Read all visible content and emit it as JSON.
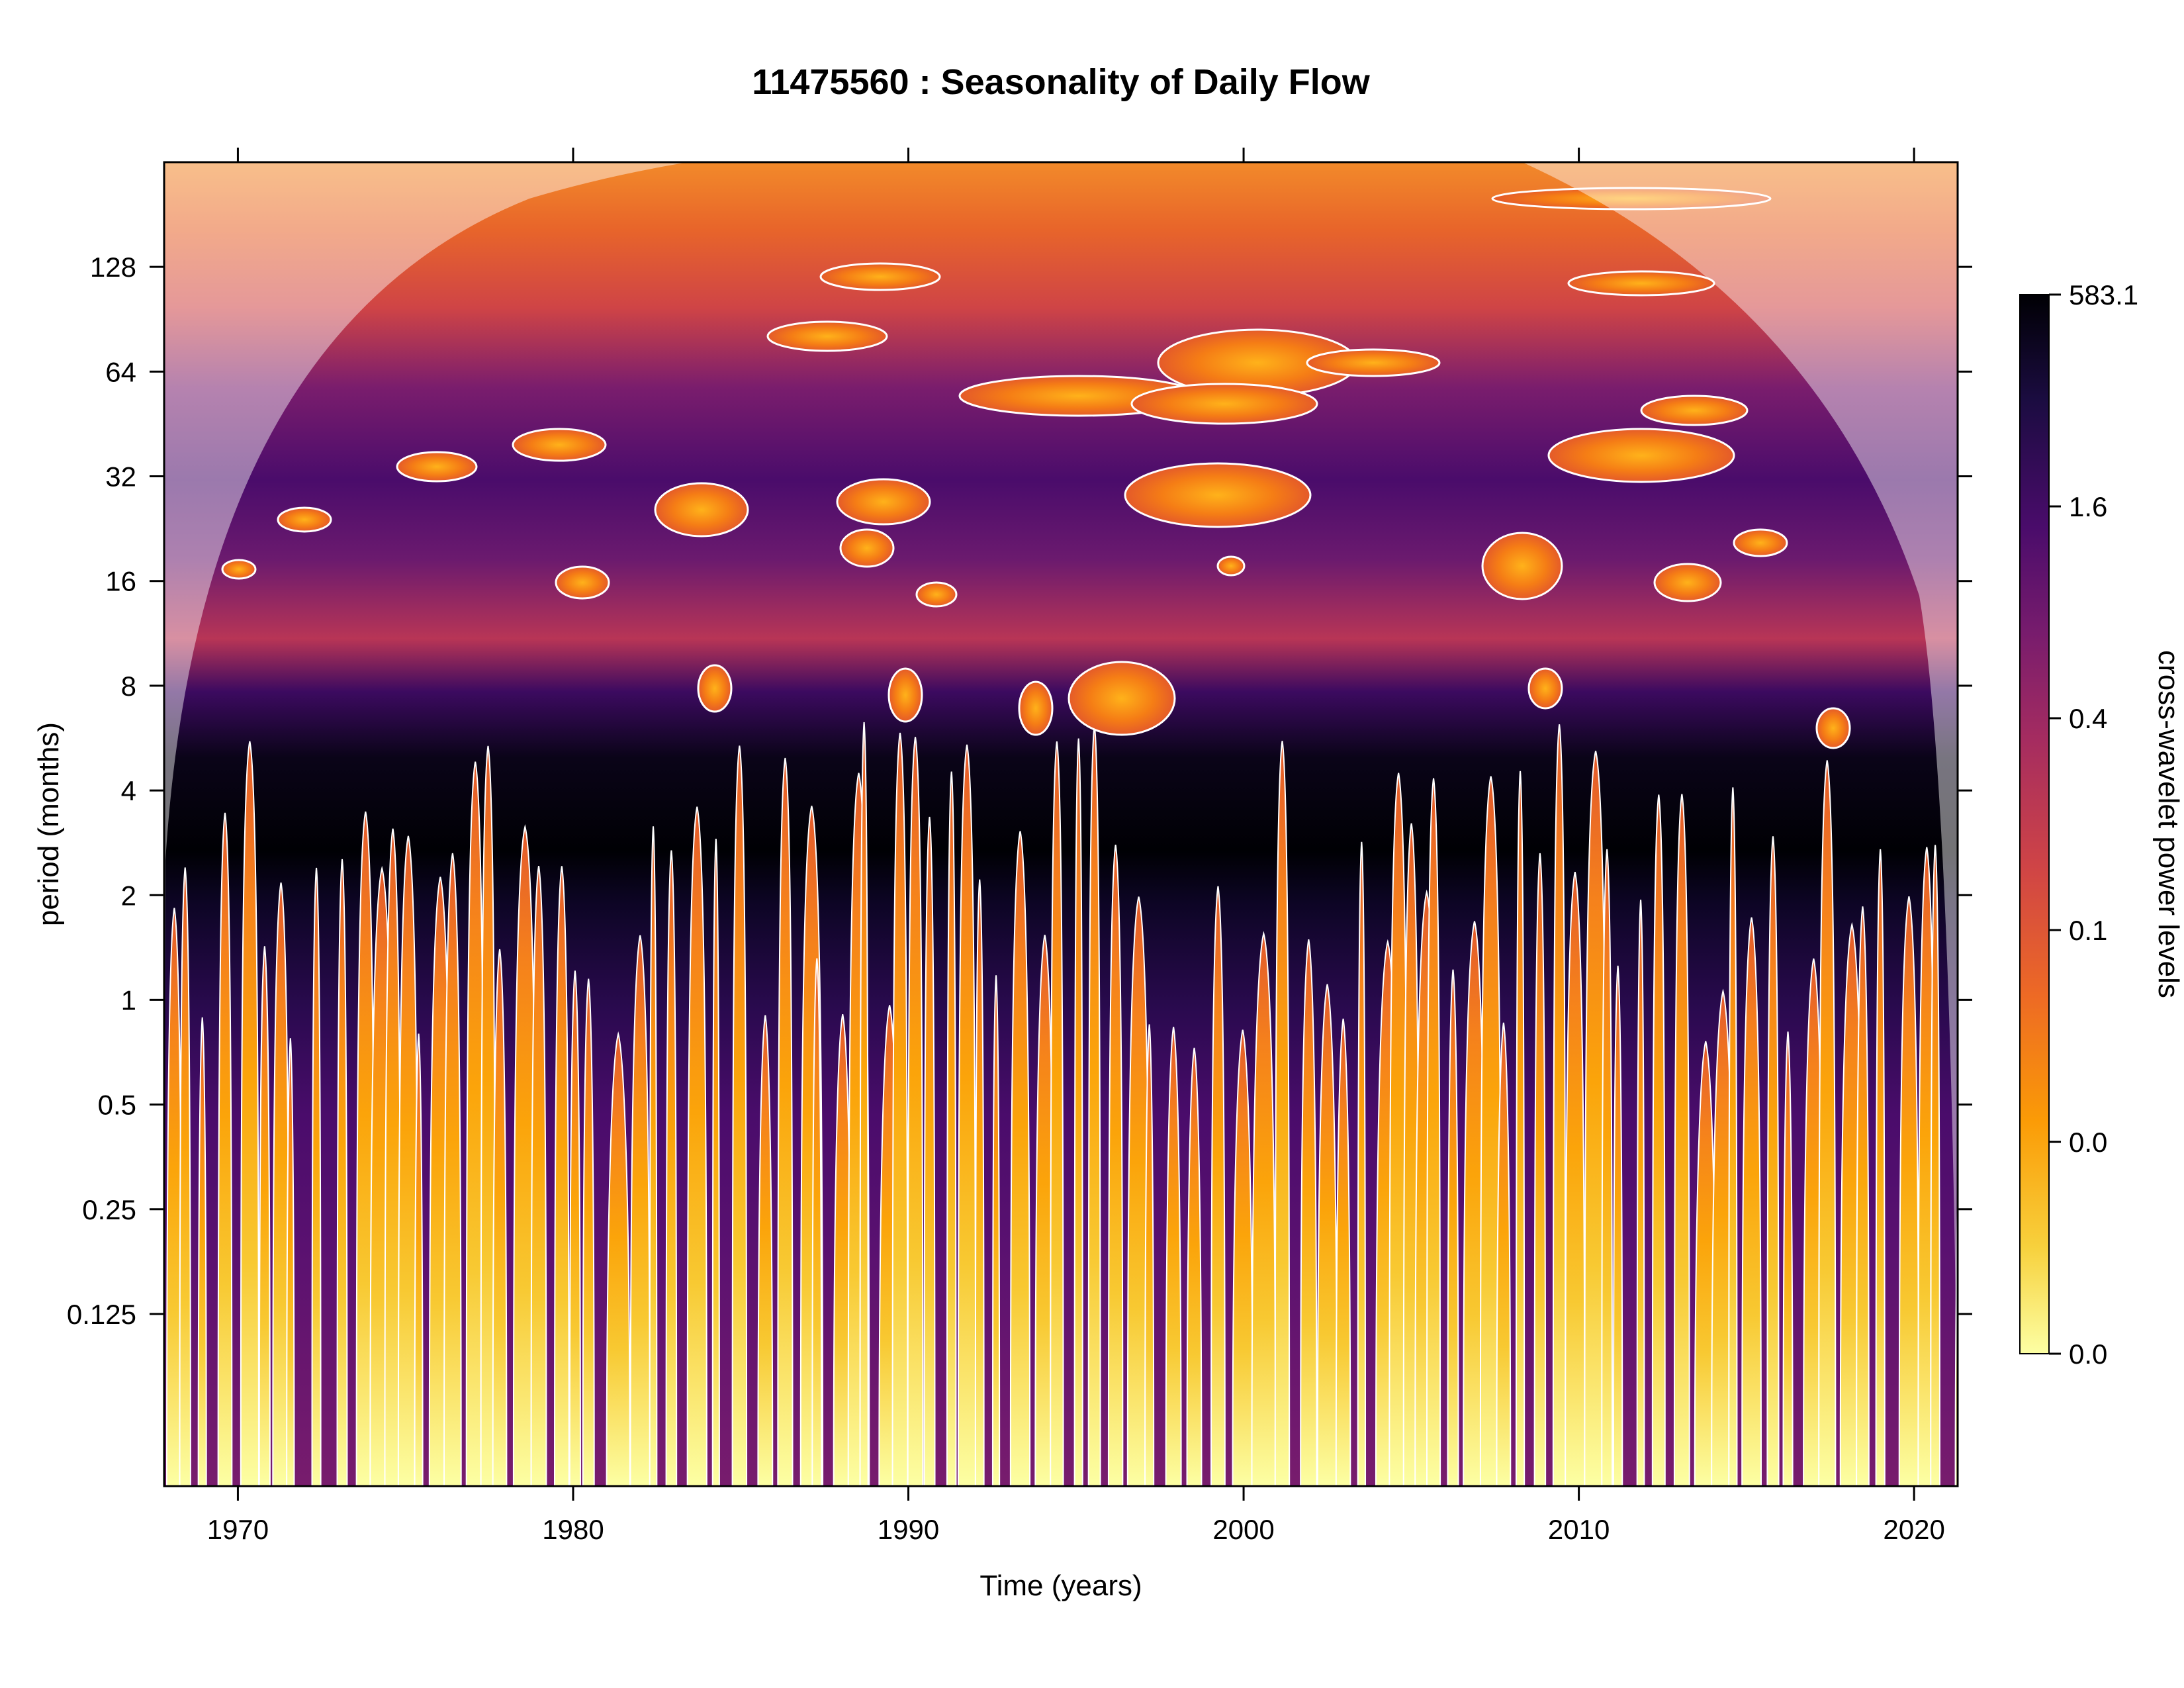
{
  "chart_data": {
    "type": "heatmap",
    "title": "11475560 : Seasonality of Daily Flow",
    "xlabel": "Time (years)",
    "ylabel": "period (months)",
    "xlim": [
      1967.8,
      2021.3
    ],
    "y_scale": "log2",
    "ylim": [
      0.04,
      256
    ],
    "x_ticks": [
      "1970",
      "1980",
      "1990",
      "2000",
      "2010",
      "2020"
    ],
    "x_tick_values": [
      1970,
      1980,
      1990,
      2000,
      2010,
      2020
    ],
    "y_ticks": [
      "0.125",
      "0.25",
      "0.5",
      "1",
      "2",
      "4",
      "8",
      "16",
      "32",
      "64",
      "128"
    ],
    "y_tick_values": [
      0.125,
      0.25,
      0.5,
      1,
      2,
      4,
      8,
      16,
      32,
      64,
      128
    ],
    "colorbar": {
      "label": "cross-wavelet power levels",
      "tick_labels": [
        "0.0",
        "0.0",
        "0.1",
        "0.4",
        "1.6",
        "583.1"
      ],
      "colors": [
        "#fcffa4",
        "#f7d13d",
        "#fb9b06",
        "#ed6925",
        "#cf4446",
        "#a52c60",
        "#781c6d",
        "#4a0c6b",
        "#1b0c41",
        "#000004"
      ]
    },
    "cone_of_influence": true,
    "significance_contour_color": "#ffffff",
    "dominant_band_period_months": 12
  }
}
